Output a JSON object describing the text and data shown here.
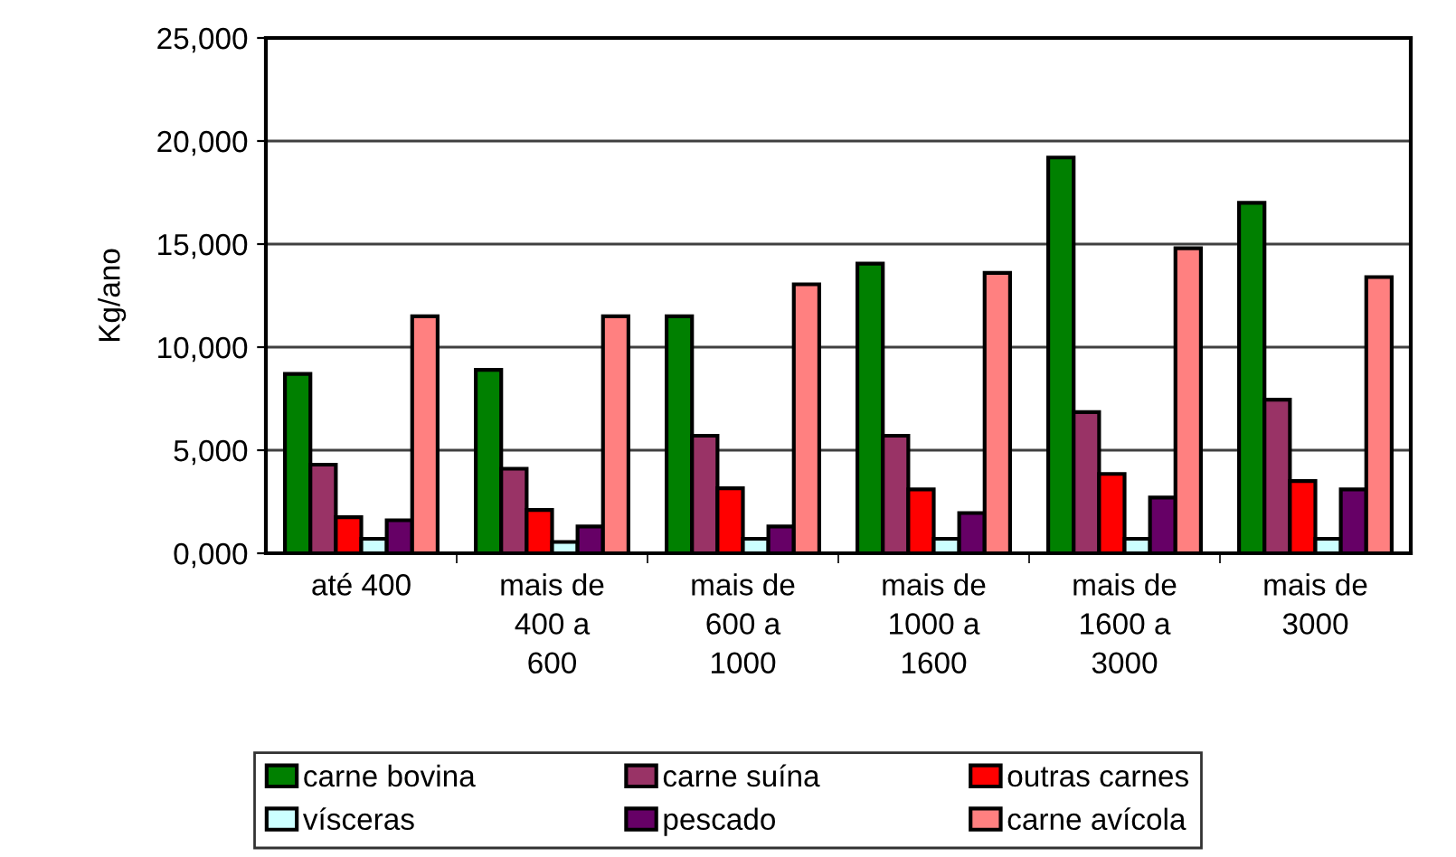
{
  "chart_data": {
    "type": "bar",
    "ylabel": "Kg/ano",
    "categories": [
      "até 400",
      "mais de\n400 a\n600",
      "mais de\n600 a\n1000",
      "mais de\n1000 a\n1600",
      "mais de\n1600 a\n3000",
      "mais de\n3000"
    ],
    "series": [
      {
        "name": "carne bovina",
        "color": "#008000",
        "values": [
          8700,
          8900,
          11500,
          14050,
          19200,
          17000
        ]
      },
      {
        "name": "carne suína",
        "color": "#993366",
        "values": [
          4300,
          4100,
          5700,
          5700,
          6850,
          7450
        ]
      },
      {
        "name": "outras carnes",
        "color": "#ff0000",
        "values": [
          1750,
          2100,
          3150,
          3100,
          3850,
          3500
        ]
      },
      {
        "name": "vísceras",
        "color": "#ccffff",
        "values": [
          700,
          550,
          700,
          700,
          700,
          700
        ]
      },
      {
        "name": "pescado",
        "color": "#660066",
        "values": [
          1600,
          1300,
          1300,
          1950,
          2700,
          3100
        ]
      },
      {
        "name": "carne avícola",
        "color": "#ff8080",
        "values": [
          11500,
          11500,
          13050,
          13600,
          14800,
          13400
        ]
      }
    ],
    "ylim": [
      0,
      25000
    ],
    "yticks": [
      {
        "value": 0,
        "label": "0,000"
      },
      {
        "value": 5000,
        "label": "5,000"
      },
      {
        "value": 10000,
        "label": "10,000"
      },
      {
        "value": 15000,
        "label": "15,000"
      },
      {
        "value": 20000,
        "label": "20,000"
      },
      {
        "value": 25000,
        "label": "25,000"
      }
    ],
    "grid": "y",
    "legend": "bottom"
  }
}
